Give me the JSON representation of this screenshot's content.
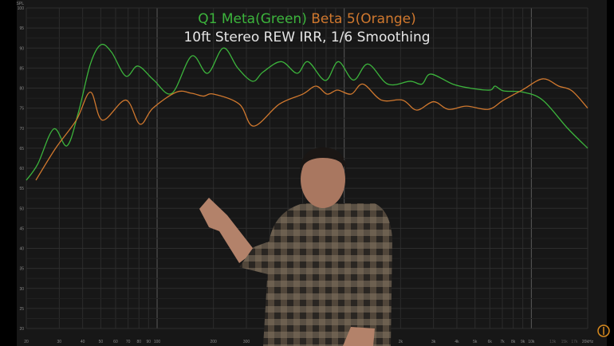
{
  "chart_data": {
    "type": "line",
    "title_parts": [
      {
        "text": "Q1 Meta(Green)",
        "color": "#3cb43c"
      },
      {
        "text": " Beta 5(Orange)",
        "color": "#d0782e"
      }
    ],
    "subtitle": "10ft Stereo REW IRR, 1/6 Smoothing",
    "ylabel": "SPL",
    "xscale": "log",
    "xlim": [
      20,
      20000
    ],
    "ylim": [
      20,
      100
    ],
    "grid": true,
    "yticks": [
      20,
      25,
      30,
      35,
      40,
      45,
      50,
      55,
      60,
      65,
      70,
      75,
      80,
      85,
      90,
      95,
      100
    ],
    "xticks": [
      {
        "v": 20,
        "label": "20"
      },
      {
        "v": 30,
        "label": "30"
      },
      {
        "v": 40,
        "label": "40"
      },
      {
        "v": 50,
        "label": "50"
      },
      {
        "v": 60,
        "label": "60"
      },
      {
        "v": 70,
        "label": "70"
      },
      {
        "v": 80,
        "label": "80"
      },
      {
        "v": 90,
        "label": "90"
      },
      {
        "v": 100,
        "label": "100"
      },
      {
        "v": 200,
        "label": "200"
      },
      {
        "v": 300,
        "label": "300"
      },
      {
        "v": 2000,
        "label": "2k"
      },
      {
        "v": 3000,
        "label": "3k"
      },
      {
        "v": 4000,
        "label": "4k"
      },
      {
        "v": 5000,
        "label": "5k"
      },
      {
        "v": 6000,
        "label": "6k"
      },
      {
        "v": 7000,
        "label": "7k"
      },
      {
        "v": 8000,
        "label": "8k"
      },
      {
        "v": 9000,
        "label": "9k"
      },
      {
        "v": 10000,
        "label": "10k"
      },
      {
        "v": 13000,
        "label": "13k",
        "dim": true
      },
      {
        "v": 15000,
        "label": "15k",
        "dim": true
      },
      {
        "v": 17000,
        "label": "17k",
        "dim": true
      },
      {
        "v": 20000,
        "label": "20kHz"
      }
    ],
    "series": [
      {
        "color": "#3cb43c",
        "points": [
          [
            20,
            57
          ],
          [
            23,
            61
          ],
          [
            28,
            69.8
          ],
          [
            33,
            65.6
          ],
          [
            38,
            74
          ],
          [
            44,
            86
          ],
          [
            50,
            90.8
          ],
          [
            57,
            89
          ],
          [
            68,
            83
          ],
          [
            79,
            85.5
          ],
          [
            96,
            82
          ],
          [
            120,
            78.7
          ],
          [
            153,
            88
          ],
          [
            186,
            83.7
          ],
          [
            226,
            90
          ],
          [
            270,
            85
          ],
          [
            324,
            81.7
          ],
          [
            368,
            84
          ],
          [
            460,
            86.6
          ],
          [
            560,
            83.7
          ],
          [
            640,
            86.6
          ],
          [
            793,
            81.9
          ],
          [
            930,
            86.6
          ],
          [
            1120,
            82
          ],
          [
            1340,
            86
          ],
          [
            1710,
            81
          ],
          [
            2250,
            81.7
          ],
          [
            2600,
            81
          ],
          [
            2900,
            83.5
          ],
          [
            3800,
            81
          ],
          [
            4700,
            80
          ],
          [
            6000,
            79.5
          ],
          [
            6400,
            80.5
          ],
          [
            7100,
            79.3
          ],
          [
            9000,
            79
          ],
          [
            11500,
            77
          ],
          [
            15600,
            70
          ],
          [
            20000,
            65
          ]
        ]
      },
      {
        "color": "#d0782e",
        "points": [
          [
            22.5,
            57
          ],
          [
            28.7,
            65
          ],
          [
            37,
            72
          ],
          [
            44,
            79
          ],
          [
            51,
            72
          ],
          [
            68,
            77
          ],
          [
            81,
            71
          ],
          [
            95,
            75
          ],
          [
            127,
            79
          ],
          [
            153,
            78.7
          ],
          [
            177,
            78
          ],
          [
            200,
            78.5
          ],
          [
            275,
            76
          ],
          [
            328,
            70.5
          ],
          [
            450,
            76
          ],
          [
            600,
            78.5
          ],
          [
            707,
            80.5
          ],
          [
            810,
            78.5
          ],
          [
            920,
            79.5
          ],
          [
            1090,
            78.5
          ],
          [
            1260,
            81
          ],
          [
            1580,
            77
          ],
          [
            2050,
            77
          ],
          [
            2440,
            74.5
          ],
          [
            3000,
            76.6
          ],
          [
            3600,
            74.7
          ],
          [
            4500,
            75.5
          ],
          [
            5900,
            74.7
          ],
          [
            7100,
            77
          ],
          [
            9000,
            79.6
          ],
          [
            11500,
            82.3
          ],
          [
            14000,
            80.5
          ],
          [
            16500,
            79.3
          ],
          [
            20000,
            75
          ]
        ]
      }
    ]
  },
  "overlay": {
    "logo_color": "#d88a1e"
  }
}
